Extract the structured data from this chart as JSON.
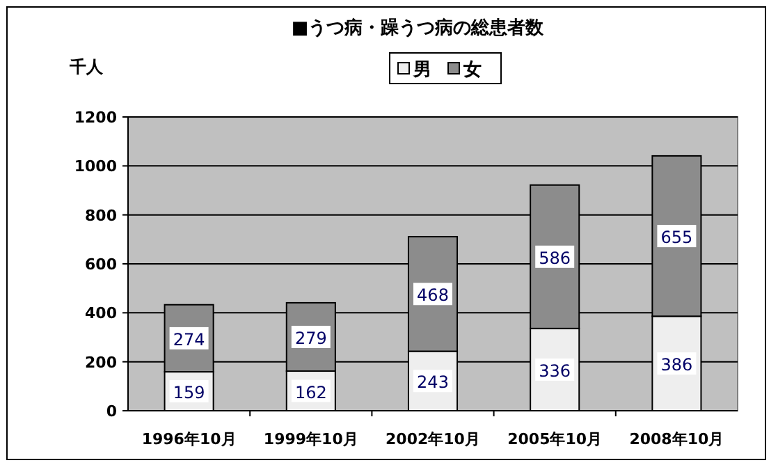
{
  "chart_data": {
    "type": "bar",
    "title": "■うつ病・躁うつ病の総患者数",
    "ylabel": "千人",
    "categories": [
      "1996年10月",
      "1999年10月",
      "2002年10月",
      "2005年10月",
      "2008年10月"
    ],
    "series": [
      {
        "name": "男",
        "color": "#eeeeee",
        "values": [
          159,
          162,
          243,
          336,
          386
        ]
      },
      {
        "name": "女",
        "color": "#8c8c8c",
        "values": [
          274,
          279,
          468,
          586,
          655
        ]
      }
    ],
    "stacked": true,
    "ylim": [
      0,
      1200
    ],
    "yticks": [
      0,
      200,
      400,
      600,
      800,
      1000,
      1200
    ],
    "grid": "y",
    "legend": "top",
    "data_labels": true
  }
}
